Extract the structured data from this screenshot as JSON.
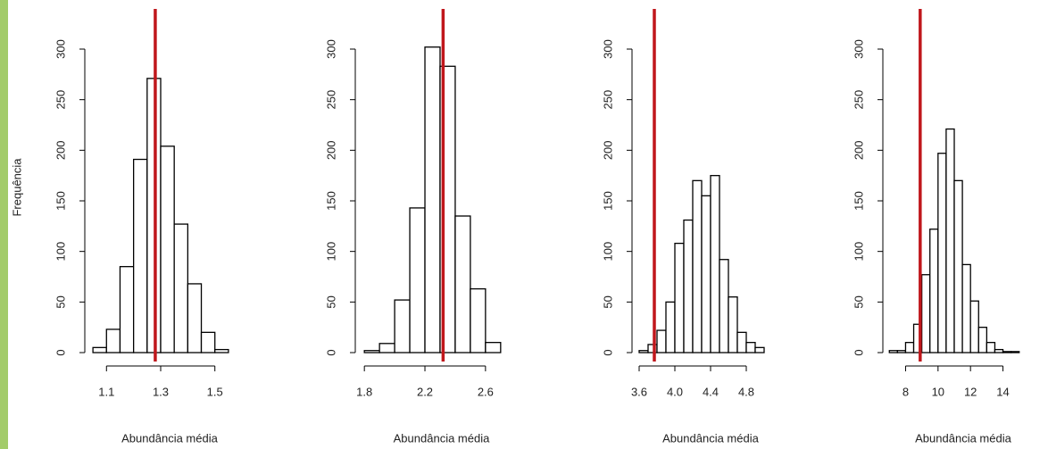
{
  "chart_data": [
    {
      "type": "histogram",
      "x_label": "Abundância média",
      "y_label": "Frequência",
      "bins": [
        1.05,
        1.1,
        1.15,
        1.2,
        1.25,
        1.3,
        1.35,
        1.4,
        1.45,
        1.5,
        1.55
      ],
      "values": [
        5,
        23,
        85,
        191,
        271,
        204,
        127,
        68,
        20,
        3
      ],
      "color": "#ffffff",
      "vline": 1.28,
      "vline_color": "#c0171c",
      "xlim": [
        1.02,
        1.58
      ],
      "xticks": [
        1.1,
        1.3,
        1.5
      ],
      "ylim": [
        0,
        300
      ],
      "yticks": [
        0,
        50,
        100,
        150,
        200,
        250,
        300
      ]
    },
    {
      "type": "histogram",
      "x_label": "Abundância média",
      "bins": [
        1.8,
        1.9,
        2.0,
        2.1,
        2.2,
        2.3,
        2.4,
        2.5,
        2.6,
        2.7
      ],
      "values": [
        2,
        9,
        52,
        143,
        302,
        283,
        135,
        63,
        10
      ],
      "color": "#ffffff",
      "vline": 2.32,
      "vline_color": "#c0171c",
      "xlim": [
        1.74,
        2.76
      ],
      "xticks": [
        1.8,
        2.2,
        2.6
      ],
      "ylim": [
        0,
        300
      ],
      "yticks": [
        0,
        50,
        100,
        150,
        200,
        250,
        300
      ]
    },
    {
      "type": "histogram",
      "x_label": "Abundância média",
      "bins": [
        3.6,
        3.7,
        3.8,
        3.9,
        4.0,
        4.1,
        4.2,
        4.3,
        4.4,
        4.5,
        4.6,
        4.7,
        4.8,
        4.9,
        5.0
      ],
      "values": [
        2,
        8,
        22,
        50,
        108,
        131,
        170,
        155,
        175,
        92,
        55,
        20,
        10,
        5
      ],
      "color": "#ffffff",
      "vline": 3.77,
      "vline_color": "#c0171c",
      "xlim": [
        3.52,
        5.08
      ],
      "xticks": [
        3.6,
        {
          "value": 4,
          "label": "4.0"
        },
        4.4,
        4.8
      ],
      "ylim": [
        0,
        300
      ],
      "yticks": [
        0,
        50,
        100,
        150,
        200,
        250,
        300
      ]
    },
    {
      "type": "histogram",
      "x_label": "Abundância média",
      "bins": [
        7.0,
        7.5,
        8.0,
        8.5,
        9.0,
        9.5,
        10.0,
        10.5,
        11.0,
        11.5,
        12.0,
        12.5,
        13.0,
        13.5,
        14.0,
        14.5,
        15.0
      ],
      "values": [
        2,
        2,
        10,
        28,
        77,
        122,
        197,
        221,
        170,
        87,
        51,
        25,
        10,
        3,
        1,
        1
      ],
      "color": "#ffffff",
      "vline": 8.9,
      "vline_color": "#c0171c",
      "xlim": [
        6.6,
        15.4
      ],
      "xticks": [
        8,
        10,
        12,
        14
      ],
      "ylim": [
        0,
        300
      ],
      "yticks": [
        0,
        50,
        100,
        150,
        200,
        250,
        300
      ]
    }
  ]
}
